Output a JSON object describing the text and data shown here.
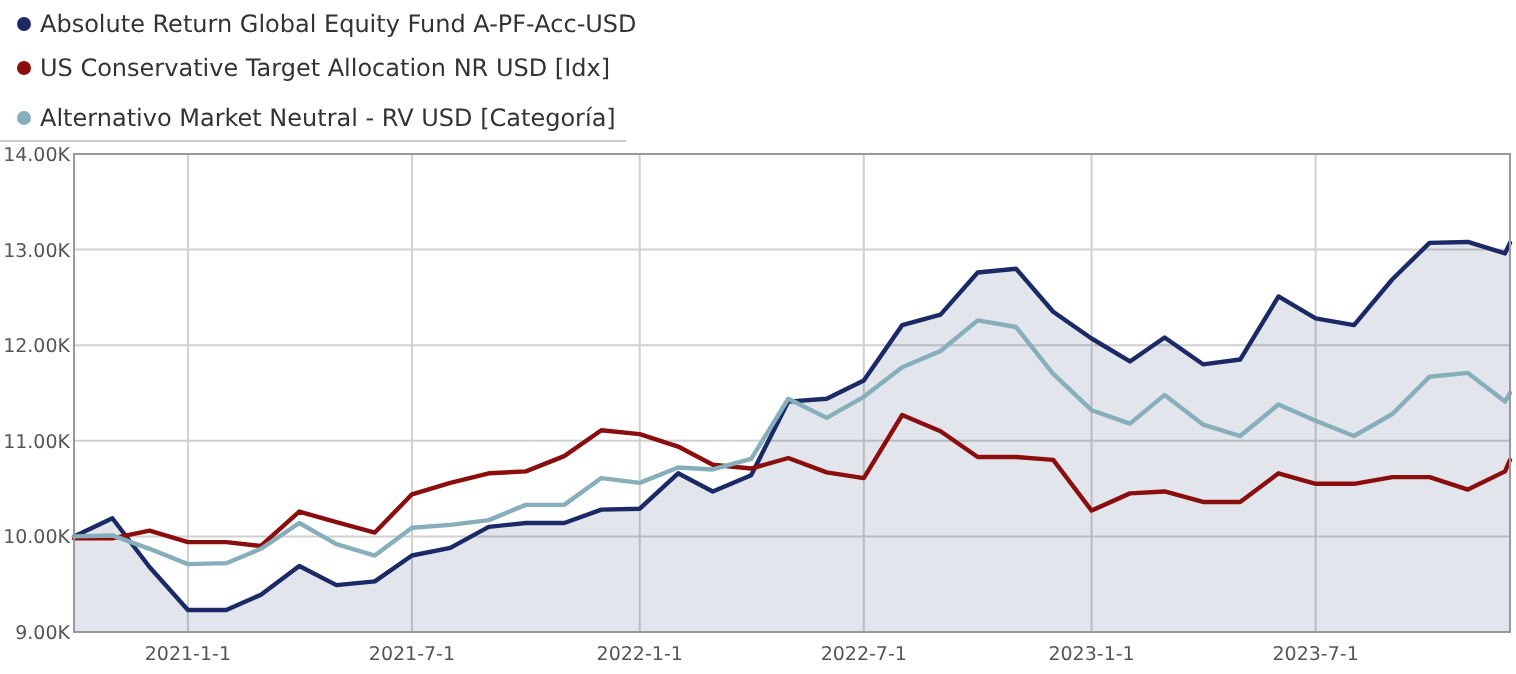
{
  "chart_data": {
    "type": "line",
    "legend": "top left",
    "grid": true,
    "marker": "none",
    "x": [
      "2020-10-01",
      "2020-11-01",
      "2020-12-01",
      "2021-01-01",
      "2021-02-01",
      "2021-03-01",
      "2021-04-01",
      "2021-05-01",
      "2021-06-01",
      "2021-07-01",
      "2021-08-01",
      "2021-09-01",
      "2021-10-01",
      "2021-11-01",
      "2021-12-01",
      "2022-01-01",
      "2022-02-01",
      "2022-03-01",
      "2022-04-01",
      "2022-05-01",
      "2022-06-01",
      "2022-07-01",
      "2022-08-01",
      "2022-09-01",
      "2022-10-01",
      "2022-11-01",
      "2022-12-01",
      "2023-01-01",
      "2023-02-01",
      "2023-03-01",
      "2023-04-01",
      "2023-05-01",
      "2023-06-01",
      "2023-07-01",
      "2023-08-01",
      "2023-09-01",
      "2023-10-01",
      "2023-11-01",
      "2023-12-01",
      "2023-12-05"
    ],
    "xlim": [
      "2020-10-01",
      "2023-12-05"
    ],
    "xticks": [
      {
        "value": "2021-01-01",
        "label": "2021-1-1"
      },
      {
        "value": "2021-07-01",
        "label": "2021-7-1"
      },
      {
        "value": "2022-01-01",
        "label": "2022-1-1"
      },
      {
        "value": "2022-07-01",
        "label": "2022-7-1"
      },
      {
        "value": "2023-01-01",
        "label": "2023-1-1"
      },
      {
        "value": "2023-07-01",
        "label": "2023-7-1"
      }
    ],
    "ylim": [
      9000,
      14000
    ],
    "yticks": [
      {
        "value": 9000,
        "label": "9.00K"
      },
      {
        "value": 10000,
        "label": "10.00K"
      },
      {
        "value": 11000,
        "label": "11.00K"
      },
      {
        "value": 12000,
        "label": "12.00K"
      },
      {
        "value": 13000,
        "label": "13.00K"
      },
      {
        "value": 14000,
        "label": "14.00K"
      }
    ],
    "series": [
      {
        "name": "Absolute Return Global Equity Fund A-PF-Acc-USD",
        "type": "area",
        "color": "#1b2a66",
        "values": [
          10000,
          10190,
          9680,
          9230,
          9230,
          9390,
          9690,
          9490,
          9530,
          9800,
          9880,
          10100,
          10140,
          10140,
          10280,
          10290,
          10660,
          10470,
          10640,
          11410,
          11440,
          11630,
          12210,
          12320,
          12760,
          12800,
          12350,
          12070,
          11830,
          12080,
          11800,
          11850,
          12510,
          12280,
          12210,
          12690,
          13070,
          13080,
          12960,
          13070
        ]
      },
      {
        "name": "US Conservative Target Allocation NR USD [Idx]",
        "color": "#8b0e0e",
        "values": [
          9980,
          9980,
          10060,
          9940,
          9940,
          9900,
          10260,
          10150,
          10040,
          10440,
          10560,
          10660,
          10680,
          10840,
          11110,
          11070,
          10940,
          10750,
          10710,
          10820,
          10670,
          10610,
          11270,
          11100,
          10830,
          10830,
          10800,
          10270,
          10450,
          10470,
          10360,
          10360,
          10660,
          10550,
          10550,
          10620,
          10620,
          10490,
          10680,
          10800
        ]
      },
      {
        "name": "Alternativo Market Neutral - RV USD [Categoría]",
        "color": "#86aebb",
        "values": [
          10000,
          10010,
          9870,
          9710,
          9720,
          9870,
          10140,
          9920,
          9800,
          10090,
          10120,
          10170,
          10330,
          10330,
          10610,
          10560,
          10720,
          10700,
          10810,
          11440,
          11240,
          11460,
          11770,
          11940,
          12260,
          12190,
          11700,
          11320,
          11180,
          11480,
          11170,
          11050,
          11380,
          11210,
          11050,
          11280,
          11670,
          11710,
          11410,
          11500
        ]
      }
    ]
  }
}
